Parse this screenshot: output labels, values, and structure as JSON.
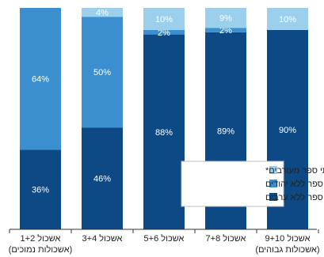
{
  "chart_data": {
    "type": "bar",
    "stacked": true,
    "percent_stacked": true,
    "categories": [
      "אשכול 1+2",
      "אשכול 3+4",
      "אשכול 5+6",
      "אשכול 7+8",
      "אשכול 9+10"
    ],
    "category_sublabels": [
      "(אשכולות נמוכים)",
      "",
      "",
      "",
      "(אשכולות גבוהים)"
    ],
    "series": [
      {
        "name": "בתי ספר ללא ערבים",
        "color": "#0d4a85",
        "values": [
          36,
          46,
          88,
          89,
          90
        ]
      },
      {
        "name": "בתי ספר ללא יהודים",
        "color": "#3b8fcf",
        "values": [
          64,
          50,
          2,
          2,
          0
        ]
      },
      {
        "name": "בתי ספר מעורבים*",
        "color": "#9ccfec",
        "values": [
          0,
          4,
          10,
          9,
          10
        ]
      }
    ],
    "value_suffix": "%",
    "ylim": [
      0,
      100
    ],
    "grid": false,
    "legend_position": "lower-right-inside",
    "title": "",
    "xlabel": "",
    "ylabel": ""
  }
}
